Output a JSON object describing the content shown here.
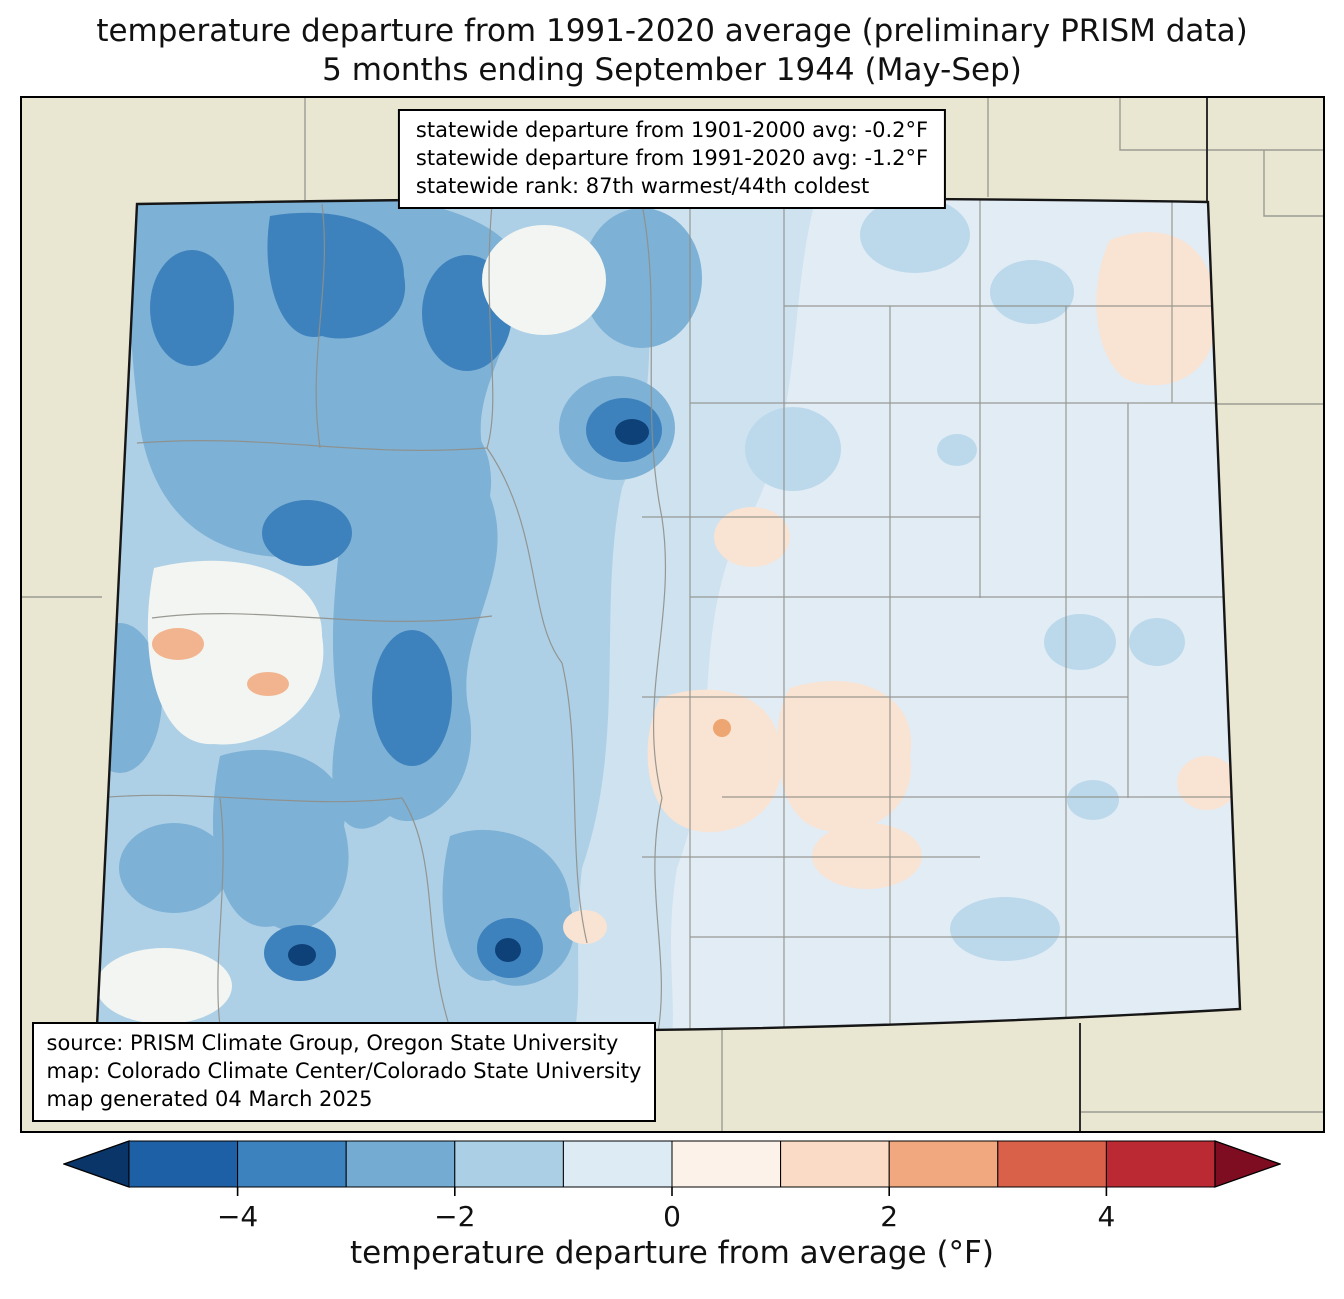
{
  "title": {
    "line1": "temperature departure from 1991-2020 average (preliminary PRISM data)",
    "line2": "5 months ending September 1944 (May-Sep)"
  },
  "stats_box": {
    "line1": "statewide departure from 1901-2000 avg: -0.2°F",
    "line2": "statewide departure from 1991-2020 avg: -1.2°F",
    "line3": "statewide rank: 87th warmest/44th coldest"
  },
  "source_box": {
    "line1": "source: PRISM Climate Group, Oregon State University",
    "line2": "map: Colorado Climate Center/Colorado State University",
    "line3": "map generated 04 March 2025"
  },
  "colorbar": {
    "label": "temperature departure from average (°F)",
    "min": -5,
    "max": 5,
    "arrow_left_color": "#0a3568",
    "arrow_right_color": "#7f0d21",
    "segments": [
      "#1e60a6",
      "#3b82bf",
      "#74abd3",
      "#abcfe5",
      "#dcebf4",
      "#fdf2e9",
      "#fadcc6",
      "#f2a87e",
      "#d96049",
      "#bb2a33"
    ],
    "ticks": [
      {
        "value": -4,
        "label": "−4"
      },
      {
        "value": -2,
        "label": "−2"
      },
      {
        "value": 0,
        "label": "0"
      },
      {
        "value": 2,
        "label": "2"
      },
      {
        "value": 4,
        "label": "4"
      }
    ]
  }
}
